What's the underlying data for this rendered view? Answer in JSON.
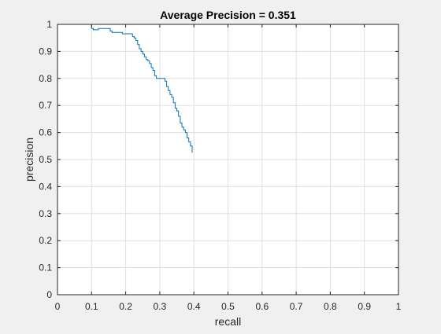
{
  "chart_data": {
    "type": "line",
    "title": "Average Precision = 0.351",
    "xlabel": "recall",
    "ylabel": "precision",
    "xlim": [
      0,
      1
    ],
    "ylim": [
      0,
      1
    ],
    "xticks": [
      "0",
      "0.1",
      "0.2",
      "0.3",
      "0.4",
      "0.5",
      "0.6",
      "0.7",
      "0.8",
      "0.9",
      "1"
    ],
    "yticks": [
      "0",
      "0.1",
      "0.2",
      "0.3",
      "0.4",
      "0.5",
      "0.6",
      "0.7",
      "0.8",
      "0.9",
      "1"
    ],
    "grid": true,
    "series": [
      {
        "color": "#0072bd",
        "x": [
          0.0,
          0.09,
          0.1,
          0.105,
          0.12,
          0.14,
          0.155,
          0.16,
          0.185,
          0.19,
          0.21,
          0.22,
          0.225,
          0.23,
          0.235,
          0.24,
          0.245,
          0.25,
          0.255,
          0.26,
          0.265,
          0.27,
          0.275,
          0.28,
          0.285,
          0.29,
          0.3,
          0.31,
          0.315,
          0.32,
          0.325,
          0.33,
          0.335,
          0.34,
          0.345,
          0.35,
          0.355,
          0.36,
          0.365,
          0.37,
          0.375,
          0.38,
          0.385,
          0.39,
          0.395
        ],
        "y": [
          1.0,
          1.0,
          0.985,
          0.98,
          0.985,
          0.985,
          0.975,
          0.97,
          0.97,
          0.965,
          0.965,
          0.955,
          0.95,
          0.94,
          0.925,
          0.91,
          0.9,
          0.89,
          0.88,
          0.87,
          0.865,
          0.855,
          0.84,
          0.83,
          0.81,
          0.8,
          0.8,
          0.8,
          0.79,
          0.77,
          0.755,
          0.74,
          0.73,
          0.71,
          0.69,
          0.68,
          0.66,
          0.635,
          0.62,
          0.61,
          0.6,
          0.58,
          0.565,
          0.55,
          0.525
        ]
      }
    ]
  }
}
